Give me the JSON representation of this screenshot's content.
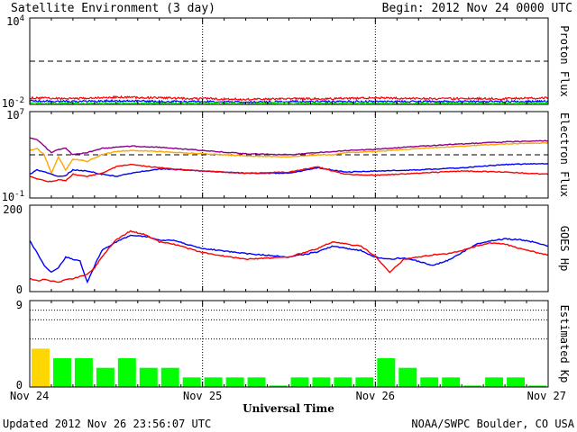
{
  "header": {
    "title": "Satellite Environment (3 day)",
    "begin": "Begin:  2012 Nov 24 0000 UTC"
  },
  "footer": {
    "updated": "Updated 2012 Nov 26 23:56:07 UTC",
    "source": "NOAA/SWPC Boulder, CO USA"
  },
  "x_axis": {
    "label": "Universal Time",
    "ticks": [
      "Nov 24",
      "Nov 25",
      "Nov 26",
      "Nov 27"
    ],
    "range_hours": [
      0,
      72
    ]
  },
  "colors": {
    "red": "#ff0000",
    "blue": "#0000ff",
    "green": "#00ff00",
    "purple": "#8b008b",
    "orange": "#ffa500",
    "kp_quiet": "#00ff00",
    "kp_unsettled": "#ffd700"
  },
  "chart_data": [
    {
      "type": "line",
      "ylabel": "Proton Flux",
      "scale": "log",
      "ylim_exp": [
        -2,
        4
      ],
      "tick_labels": [
        {
          "base": "10",
          "exp": "4",
          "value": 4
        },
        {
          "base": "10",
          "exp": "-2",
          "value": -2
        }
      ],
      "threshold_exp": 1,
      "series": [
        {
          "color": "red",
          "x": [
            0,
            6,
            12,
            18,
            24,
            30,
            36,
            42,
            48,
            54,
            60,
            66,
            72
          ],
          "y": [
            -1.55,
            -1.6,
            -1.5,
            -1.55,
            -1.6,
            -1.65,
            -1.6,
            -1.6,
            -1.55,
            -1.6,
            -1.6,
            -1.6,
            -1.55
          ]
        },
        {
          "color": "blue",
          "x": [
            0,
            6,
            12,
            18,
            24,
            30,
            36,
            42,
            48,
            54,
            60,
            66,
            72
          ],
          "y": [
            -1.75,
            -1.8,
            -1.75,
            -1.8,
            -1.8,
            -1.85,
            -1.8,
            -1.8,
            -1.8,
            -1.8,
            -1.8,
            -1.8,
            -1.8
          ]
        },
        {
          "color": "green",
          "x": [
            0,
            6,
            12,
            18,
            24,
            30,
            36,
            42,
            48,
            54,
            60,
            66,
            72
          ],
          "y": [
            -1.9,
            -1.95,
            -1.9,
            -1.95,
            -1.9,
            -1.95,
            -1.9,
            -1.95,
            -1.9,
            -1.95,
            -1.9,
            -1.95,
            -1.9
          ]
        }
      ]
    },
    {
      "type": "line",
      "ylabel": "Electron Flux",
      "scale": "log",
      "ylim_exp": [
        -1,
        7
      ],
      "tick_labels": [
        {
          "base": "10",
          "exp": "7",
          "value": 7
        },
        {
          "base": "10",
          "exp": "-1",
          "value": -1
        }
      ],
      "threshold_exp": 3,
      "series": [
        {
          "color": "purple",
          "x": [
            0,
            1,
            2,
            3,
            4,
            5,
            6,
            8,
            10,
            12,
            14,
            18,
            24,
            30,
            36,
            40,
            42,
            44,
            48,
            54,
            60,
            66,
            72
          ],
          "y": [
            4.6,
            4.4,
            3.8,
            3.2,
            3.5,
            3.6,
            3.0,
            3.2,
            3.6,
            3.7,
            3.8,
            3.7,
            3.4,
            3.1,
            3.0,
            3.2,
            3.3,
            3.4,
            3.5,
            3.8,
            4.0,
            4.2,
            4.3
          ]
        },
        {
          "color": "orange",
          "x": [
            0,
            1,
            2,
            3,
            4,
            5,
            6,
            8,
            10,
            12,
            14,
            18,
            24,
            30,
            36,
            40,
            42,
            44,
            48,
            54,
            60,
            66,
            72
          ],
          "y": [
            3.4,
            3.6,
            3.0,
            1.3,
            2.8,
            1.6,
            2.6,
            2.4,
            3.0,
            3.3,
            3.4,
            3.3,
            3.1,
            2.9,
            2.8,
            3.0,
            3.0,
            3.2,
            3.3,
            3.6,
            3.8,
            4.0,
            4.1
          ]
        },
        {
          "color": "blue",
          "x": [
            0,
            1,
            2,
            3,
            4,
            5,
            6,
            8,
            10,
            12,
            14,
            18,
            24,
            30,
            36,
            40,
            42,
            44,
            48,
            54,
            60,
            66,
            72
          ],
          "y": [
            1.2,
            1.6,
            1.4,
            1.2,
            1.0,
            1.1,
            1.6,
            1.5,
            1.2,
            1.0,
            1.3,
            1.7,
            1.5,
            1.3,
            1.3,
            1.8,
            1.6,
            1.4,
            1.5,
            1.6,
            1.8,
            2.1,
            2.2
          ]
        },
        {
          "color": "red",
          "x": [
            0,
            1,
            2,
            3,
            4,
            5,
            6,
            8,
            10,
            12,
            14,
            18,
            24,
            30,
            36,
            40,
            42,
            44,
            48,
            54,
            60,
            66,
            72
          ],
          "y": [
            1.0,
            0.8,
            0.6,
            0.5,
            0.7,
            0.6,
            1.2,
            1.0,
            1.3,
            1.9,
            2.1,
            1.8,
            1.5,
            1.3,
            1.4,
            1.9,
            1.5,
            1.2,
            1.1,
            1.3,
            1.5,
            1.4,
            1.2
          ]
        }
      ]
    },
    {
      "type": "line",
      "ylabel": "GOES Hp",
      "scale": "linear",
      "ylim": [
        0,
        200
      ],
      "ticks": [
        200,
        0
      ],
      "series": [
        {
          "color": "blue",
          "x": [
            0,
            1,
            2,
            3,
            4,
            5,
            6,
            7,
            8,
            9,
            10,
            12,
            14,
            16,
            18,
            20,
            24,
            30,
            36,
            40,
            42,
            46,
            48,
            50,
            52,
            54,
            56,
            58,
            60,
            62,
            64,
            66,
            68,
            70,
            72
          ],
          "y": [
            118,
            90,
            60,
            45,
            55,
            80,
            75,
            70,
            22,
            60,
            95,
            115,
            130,
            128,
            120,
            118,
            100,
            88,
            80,
            92,
            105,
            95,
            80,
            75,
            78,
            70,
            60,
            72,
            90,
            110,
            118,
            122,
            120,
            115,
            105
          ]
        },
        {
          "color": "red",
          "x": [
            0,
            1,
            2,
            3,
            4,
            5,
            6,
            7,
            8,
            9,
            10,
            12,
            14,
            16,
            18,
            20,
            24,
            30,
            36,
            40,
            42,
            46,
            48,
            50,
            52,
            54,
            56,
            58,
            60,
            62,
            64,
            66,
            68,
            70,
            72
          ],
          "y": [
            30,
            25,
            28,
            24,
            22,
            28,
            30,
            35,
            40,
            55,
            80,
            120,
            140,
            132,
            115,
            110,
            90,
            75,
            80,
            100,
            115,
            105,
            82,
            45,
            75,
            80,
            85,
            88,
            95,
            105,
            113,
            110,
            100,
            92,
            85
          ]
        }
      ]
    },
    {
      "type": "bar",
      "ylabel": "Estimated Kp",
      "ylim": [
        0,
        9
      ],
      "ticks": [
        9,
        0
      ],
      "dotted_levels": [
        5,
        7,
        8
      ],
      "bin_hours": 3,
      "values": [
        4,
        3,
        3,
        2,
        3,
        2,
        2,
        1,
        1,
        1,
        1,
        0,
        1,
        1,
        1,
        1,
        3,
        2,
        1,
        1,
        0,
        1,
        1,
        0
      ],
      "colors": [
        "kp_unsettled",
        "kp_quiet",
        "kp_quiet",
        "kp_quiet",
        "kp_quiet",
        "kp_quiet",
        "kp_quiet",
        "kp_quiet",
        "kp_quiet",
        "kp_quiet",
        "kp_quiet",
        "kp_quiet",
        "kp_quiet",
        "kp_quiet",
        "kp_quiet",
        "kp_quiet",
        "kp_quiet",
        "kp_quiet",
        "kp_quiet",
        "kp_quiet",
        "kp_quiet",
        "kp_quiet",
        "kp_quiet",
        "kp_quiet"
      ]
    }
  ]
}
